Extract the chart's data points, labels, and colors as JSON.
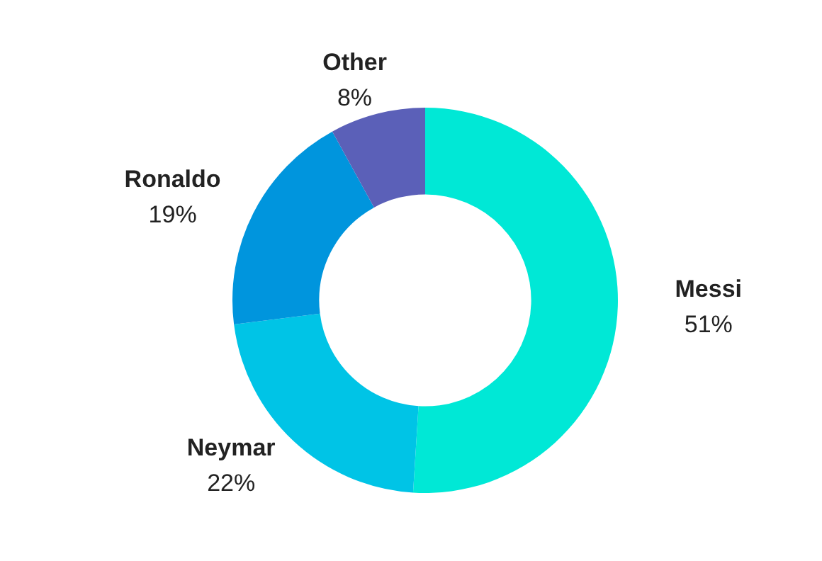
{
  "chart_data": {
    "type": "donut",
    "categories": [
      "Messi",
      "Neymar",
      "Ronaldo",
      "Other"
    ],
    "values": [
      51,
      22,
      19,
      8
    ],
    "value_labels": [
      "51%",
      "22%",
      "19%",
      "8%"
    ],
    "colors": [
      "#00e8d6",
      "#00c4e6",
      "#0095dd",
      "#5b60b8"
    ],
    "legend": false
  }
}
